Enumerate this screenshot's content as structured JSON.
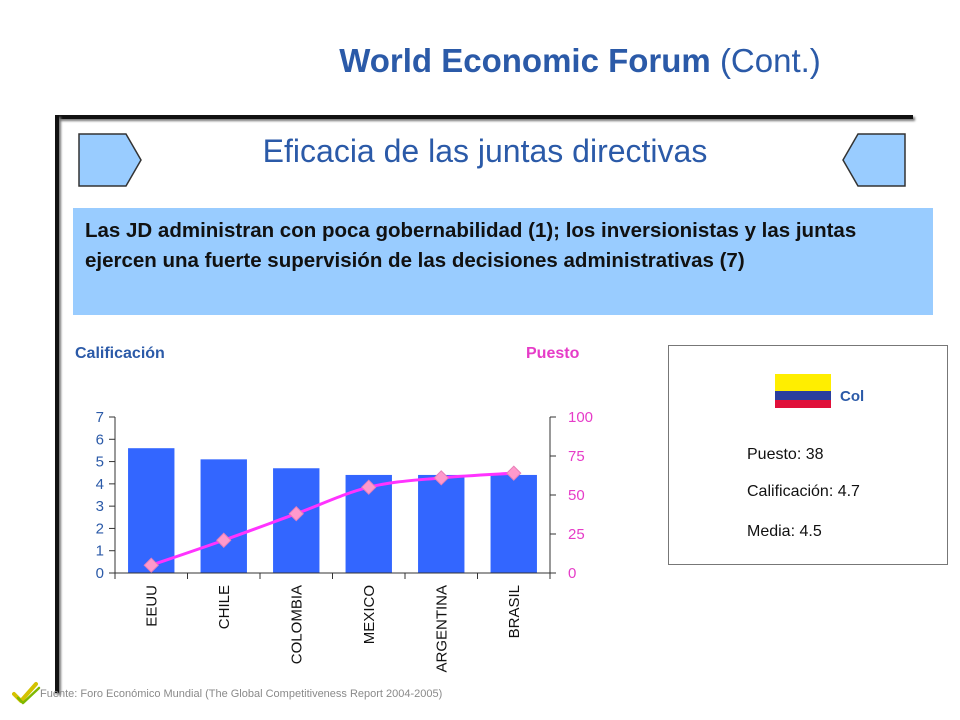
{
  "title": {
    "main": "World Economic Forum",
    "suffix": "(Cont.)"
  },
  "subtitle": "Eficacia de las juntas directivas",
  "highlight_text": "Las JD administran con poca gobernabilidad (1); los inversionistas y las juntas ejercen una fuerte supervisión de las decisiones administrativas (7)",
  "left_axis_title": "Calificación",
  "right_axis_title": "Puesto",
  "info": {
    "flag_label": "Col",
    "puesto": "Puesto: 38",
    "calificacion": "Calificación: 4.7",
    "media": "Media: 4.5"
  },
  "footer": "Fuente: Foro Económico Mundial (The Global Competitiveness Report 2004-2005)",
  "colors": {
    "accent": "#2b5aa8",
    "bar": "#3366ff",
    "line": "#ff33ff",
    "marker": "#ff99cc",
    "highlight_bg": "#99ccff"
  },
  "chart_data": {
    "type": "bar",
    "categories": [
      "EEUU",
      "CHILE",
      "COLOMBIA",
      "MEXICO",
      "ARGENTINA",
      "BRASIL"
    ],
    "series": [
      {
        "axis": "left",
        "type": "bar",
        "values": [
          5.6,
          5.1,
          4.7,
          4.4,
          4.4,
          4.4
        ]
      },
      {
        "axis": "right",
        "type": "line",
        "values": [
          5,
          21,
          38,
          55,
          61,
          64
        ]
      }
    ],
    "ylabel": "Calificación",
    "y2label": "Puesto",
    "ylim": [
      0,
      7
    ],
    "y2lim": [
      0,
      100
    ],
    "yticks": [
      0,
      1,
      2,
      3,
      4,
      5,
      6,
      7
    ],
    "y2ticks": [
      0,
      25,
      50,
      75,
      100
    ]
  }
}
